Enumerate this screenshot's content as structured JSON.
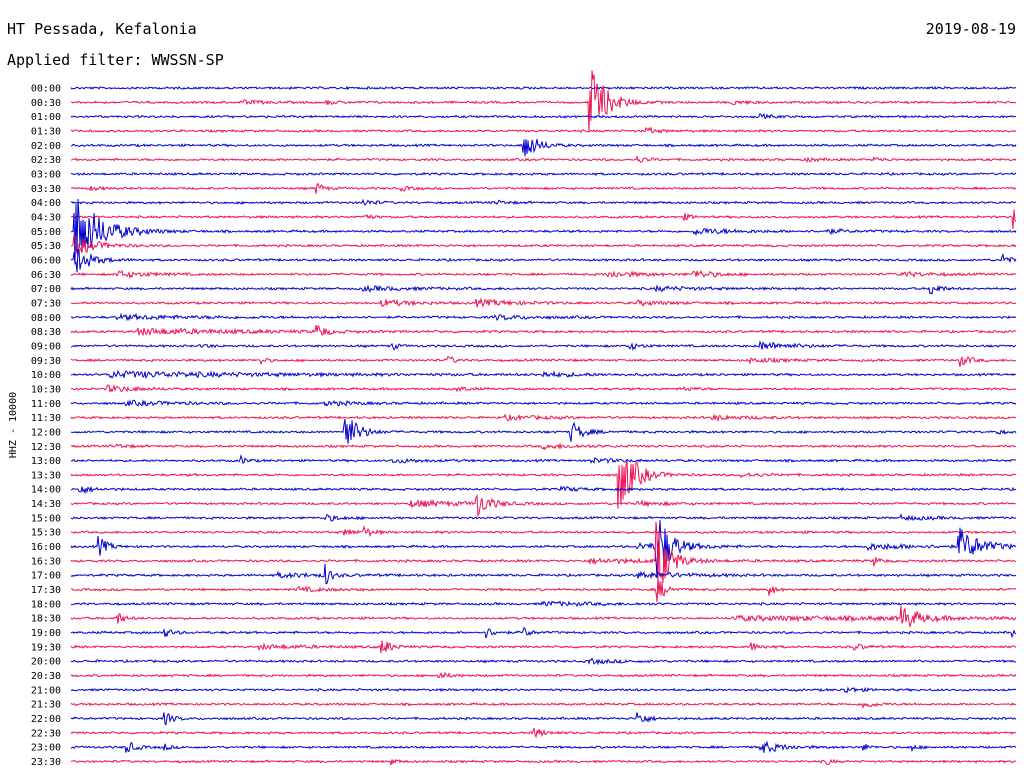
{
  "header": {
    "station": "HT Pessada, Kefalonia",
    "date": "2019-08-19",
    "filter": "Applied filter: WWSSN-SP"
  },
  "chart_data": {
    "type": "line",
    "title": "HT Pessada, Kefalonia",
    "ylabel": "HHZ - 10000",
    "xlabel": "",
    "colors": [
      "#0000cc",
      "#ee1150"
    ],
    "series": [
      {
        "name": "00:00",
        "events": []
      },
      {
        "name": "00:30",
        "events": [
          {
            "t": 0.55,
            "a": 38,
            "d": 0.015
          },
          {
            "t": 0.18,
            "a": 2,
            "d": 0.02
          },
          {
            "t": 0.27,
            "a": 2,
            "d": 0.01
          },
          {
            "t": 0.7,
            "a": 2,
            "d": 0.015
          }
        ]
      },
      {
        "name": "01:00",
        "events": [
          {
            "t": 0.73,
            "a": 2,
            "d": 0.01
          }
        ]
      },
      {
        "name": "01:30",
        "events": [
          {
            "t": 0.61,
            "a": 3,
            "d": 0.01
          }
        ]
      },
      {
        "name": "02:00",
        "events": [
          {
            "t": 0.48,
            "a": 16,
            "d": 0.012
          }
        ]
      },
      {
        "name": "02:30",
        "events": [
          {
            "t": 0.6,
            "a": 3,
            "d": 0.01
          },
          {
            "t": 0.78,
            "a": 2,
            "d": 0.01
          },
          {
            "t": 0.85,
            "a": 2,
            "d": 0.01
          }
        ]
      },
      {
        "name": "03:00",
        "events": []
      },
      {
        "name": "03:30",
        "events": [
          {
            "t": 0.02,
            "a": 2,
            "d": 0.01
          },
          {
            "t": 0.26,
            "a": 6,
            "d": 0.006
          },
          {
            "t": 0.35,
            "a": 2,
            "d": 0.01
          }
        ]
      },
      {
        "name": "04:00",
        "events": [
          {
            "t": 0.31,
            "a": 3,
            "d": 0.01
          },
          {
            "t": 0.45,
            "a": 2,
            "d": 0.01
          }
        ]
      },
      {
        "name": "04:30",
        "events": [
          {
            "t": 0.31,
            "a": 4,
            "d": 0.006
          },
          {
            "t": 0.65,
            "a": 3,
            "d": 0.006
          },
          {
            "t": 0.998,
            "a": 12,
            "d": 0.004
          }
        ]
      },
      {
        "name": "05:00",
        "events": [
          {
            "t": 0.005,
            "a": 38,
            "d": 0.025
          },
          {
            "t": 0.66,
            "a": 3,
            "d": 0.04
          },
          {
            "t": 0.8,
            "a": 2,
            "d": 0.02
          }
        ]
      },
      {
        "name": "05:30",
        "events": [
          {
            "t": 0.005,
            "a": 10,
            "d": 0.02
          }
        ]
      },
      {
        "name": "06:00",
        "events": [
          {
            "t": 0.005,
            "a": 14,
            "d": 0.015
          },
          {
            "t": 0.986,
            "a": 7,
            "d": 0.006
          }
        ]
      },
      {
        "name": "06:30",
        "events": [
          {
            "t": 0.05,
            "a": 3,
            "d": 0.03
          },
          {
            "t": 0.57,
            "a": 3,
            "d": 0.03
          },
          {
            "t": 0.66,
            "a": 4,
            "d": 0.02
          },
          {
            "t": 0.88,
            "a": 2,
            "d": 0.03
          }
        ]
      },
      {
        "name": "07:00",
        "events": [
          {
            "t": 0.31,
            "a": 2,
            "d": 0.05
          },
          {
            "t": 0.62,
            "a": 2,
            "d": 0.04
          },
          {
            "t": 0.91,
            "a": 7,
            "d": 0.008
          }
        ]
      },
      {
        "name": "07:30",
        "events": [
          {
            "t": 0.33,
            "a": 3,
            "d": 0.03
          },
          {
            "t": 0.43,
            "a": 3,
            "d": 0.04
          },
          {
            "t": 0.6,
            "a": 2,
            "d": 0.03
          }
        ]
      },
      {
        "name": "08:00",
        "events": [
          {
            "t": 0.05,
            "a": 2,
            "d": 0.08
          },
          {
            "t": 0.45,
            "a": 2,
            "d": 0.04
          }
        ]
      },
      {
        "name": "08:30",
        "events": [
          {
            "t": 0.07,
            "a": 3,
            "d": 0.1
          },
          {
            "t": 0.26,
            "a": 8,
            "d": 0.008
          }
        ]
      },
      {
        "name": "09:00",
        "events": [
          {
            "t": 0.14,
            "a": 3,
            "d": 0.005
          },
          {
            "t": 0.34,
            "a": 4,
            "d": 0.005
          },
          {
            "t": 0.59,
            "a": 4,
            "d": 0.01
          },
          {
            "t": 0.73,
            "a": 4,
            "d": 0.03
          }
        ]
      },
      {
        "name": "09:30",
        "events": [
          {
            "t": 0.2,
            "a": 5,
            "d": 0.005
          },
          {
            "t": 0.4,
            "a": 4,
            "d": 0.006
          },
          {
            "t": 0.72,
            "a": 2,
            "d": 0.03
          },
          {
            "t": 0.94,
            "a": 6,
            "d": 0.01
          }
        ]
      },
      {
        "name": "10:00",
        "events": [
          {
            "t": 0.04,
            "a": 3,
            "d": 0.15
          },
          {
            "t": 0.5,
            "a": 2,
            "d": 0.04
          }
        ]
      },
      {
        "name": "10:30",
        "events": [
          {
            "t": 0.04,
            "a": 3,
            "d": 0.03
          },
          {
            "t": 0.41,
            "a": 2,
            "d": 0.01
          },
          {
            "t": 0.65,
            "a": 2,
            "d": 0.01
          }
        ]
      },
      {
        "name": "11:00",
        "events": [
          {
            "t": 0.06,
            "a": 2,
            "d": 0.05
          },
          {
            "t": 0.27,
            "a": 2,
            "d": 0.03
          }
        ]
      },
      {
        "name": "11:30",
        "events": [
          {
            "t": 0.46,
            "a": 2,
            "d": 0.04
          },
          {
            "t": 0.68,
            "a": 2,
            "d": 0.04
          }
        ]
      },
      {
        "name": "12:00",
        "events": [
          {
            "t": 0.29,
            "a": 22,
            "d": 0.012
          },
          {
            "t": 0.53,
            "a": 10,
            "d": 0.012
          },
          {
            "t": 0.98,
            "a": 3,
            "d": 0.005
          }
        ]
      },
      {
        "name": "12:30",
        "events": [
          {
            "t": 0.05,
            "a": 2,
            "d": 0.01
          },
          {
            "t": 0.5,
            "a": 2,
            "d": 0.04
          }
        ]
      },
      {
        "name": "13:00",
        "events": [
          {
            "t": 0.18,
            "a": 4,
            "d": 0.006
          },
          {
            "t": 0.34,
            "a": 2,
            "d": 0.03
          },
          {
            "t": 0.55,
            "a": 2,
            "d": 0.03
          }
        ]
      },
      {
        "name": "13:30",
        "events": [
          {
            "t": 0.58,
            "a": 38,
            "d": 0.015
          },
          {
            "t": 0.71,
            "a": 2,
            "d": 0.02
          }
        ]
      },
      {
        "name": "14:00",
        "events": [
          {
            "t": 0.01,
            "a": 4,
            "d": 0.012
          },
          {
            "t": 0.52,
            "a": 2,
            "d": 0.02
          }
        ]
      },
      {
        "name": "14:30",
        "events": [
          {
            "t": 0.36,
            "a": 3,
            "d": 0.05
          },
          {
            "t": 0.43,
            "a": 12,
            "d": 0.012
          },
          {
            "t": 0.6,
            "a": 2,
            "d": 0.03
          }
        ]
      },
      {
        "name": "15:00",
        "events": [
          {
            "t": 0.27,
            "a": 3,
            "d": 0.015
          },
          {
            "t": 0.88,
            "a": 2,
            "d": 0.03
          }
        ]
      },
      {
        "name": "15:30",
        "events": [
          {
            "t": 0.31,
            "a": 5,
            "d": 0.008
          },
          {
            "t": 0.29,
            "a": 3,
            "d": 0.01
          }
        ]
      },
      {
        "name": "16:00",
        "events": [
          {
            "t": 0.03,
            "a": 10,
            "d": 0.008
          },
          {
            "t": 0.62,
            "a": 40,
            "d": 0.012
          },
          {
            "t": 0.6,
            "a": 3,
            "d": 0.05
          },
          {
            "t": 0.94,
            "a": 18,
            "d": 0.02
          },
          {
            "t": 0.84,
            "a": 3,
            "d": 0.05
          }
        ]
      },
      {
        "name": "16:30",
        "events": [
          {
            "t": 0.62,
            "a": 38,
            "d": 0.012
          },
          {
            "t": 0.55,
            "a": 2,
            "d": 0.08
          },
          {
            "t": 0.85,
            "a": 4,
            "d": 0.006
          }
        ]
      },
      {
        "name": "17:00",
        "events": [
          {
            "t": 0.27,
            "a": 12,
            "d": 0.004
          },
          {
            "t": 0.22,
            "a": 2,
            "d": 0.05
          },
          {
            "t": 0.6,
            "a": 3,
            "d": 0.05
          }
        ]
      },
      {
        "name": "17:30",
        "events": [
          {
            "t": 0.24,
            "a": 2,
            "d": 0.03
          },
          {
            "t": 0.62,
            "a": 14,
            "d": 0.008
          },
          {
            "t": 0.74,
            "a": 6,
            "d": 0.005
          }
        ]
      },
      {
        "name": "18:00",
        "events": [
          {
            "t": 0.5,
            "a": 2,
            "d": 0.05
          }
        ]
      },
      {
        "name": "18:30",
        "events": [
          {
            "t": 0.05,
            "a": 6,
            "d": 0.006
          },
          {
            "t": 0.7,
            "a": 2,
            "d": 0.25
          },
          {
            "t": 0.88,
            "a": 12,
            "d": 0.015
          }
        ]
      },
      {
        "name": "19:00",
        "events": [
          {
            "t": 0.1,
            "a": 4,
            "d": 0.008
          },
          {
            "t": 0.44,
            "a": 5,
            "d": 0.008
          },
          {
            "t": 0.48,
            "a": 5,
            "d": 0.006
          },
          {
            "t": 0.997,
            "a": 5,
            "d": 0.004
          }
        ]
      },
      {
        "name": "19:30",
        "events": [
          {
            "t": 0.33,
            "a": 8,
            "d": 0.008
          },
          {
            "t": 0.2,
            "a": 2,
            "d": 0.05
          },
          {
            "t": 0.72,
            "a": 4,
            "d": 0.01
          },
          {
            "t": 0.83,
            "a": 3,
            "d": 0.01
          }
        ]
      },
      {
        "name": "20:00",
        "events": [
          {
            "t": 0.55,
            "a": 2,
            "d": 0.03
          }
        ]
      },
      {
        "name": "20:30",
        "events": [
          {
            "t": 0.39,
            "a": 3,
            "d": 0.01
          }
        ]
      },
      {
        "name": "21:00",
        "events": [
          {
            "t": 0.82,
            "a": 3,
            "d": 0.012
          }
        ]
      },
      {
        "name": "21:30",
        "events": [
          {
            "t": 0.84,
            "a": 4,
            "d": 0.01
          }
        ]
      },
      {
        "name": "22:00",
        "events": [
          {
            "t": 0.1,
            "a": 6,
            "d": 0.008
          },
          {
            "t": 0.6,
            "a": 8,
            "d": 0.008
          }
        ]
      },
      {
        "name": "22:30",
        "events": [
          {
            "t": 0.49,
            "a": 5,
            "d": 0.01
          }
        ]
      },
      {
        "name": "23:00",
        "events": [
          {
            "t": 0.06,
            "a": 6,
            "d": 0.008
          },
          {
            "t": 0.1,
            "a": 3,
            "d": 0.005
          },
          {
            "t": 0.73,
            "a": 6,
            "d": 0.02
          },
          {
            "t": 0.84,
            "a": 3,
            "d": 0.005
          },
          {
            "t": 0.89,
            "a": 3,
            "d": 0.005
          }
        ]
      },
      {
        "name": "23:30",
        "events": [
          {
            "t": 0.34,
            "a": 3,
            "d": 0.005
          },
          {
            "t": 0.8,
            "a": 3,
            "d": 0.005
          }
        ]
      }
    ]
  }
}
